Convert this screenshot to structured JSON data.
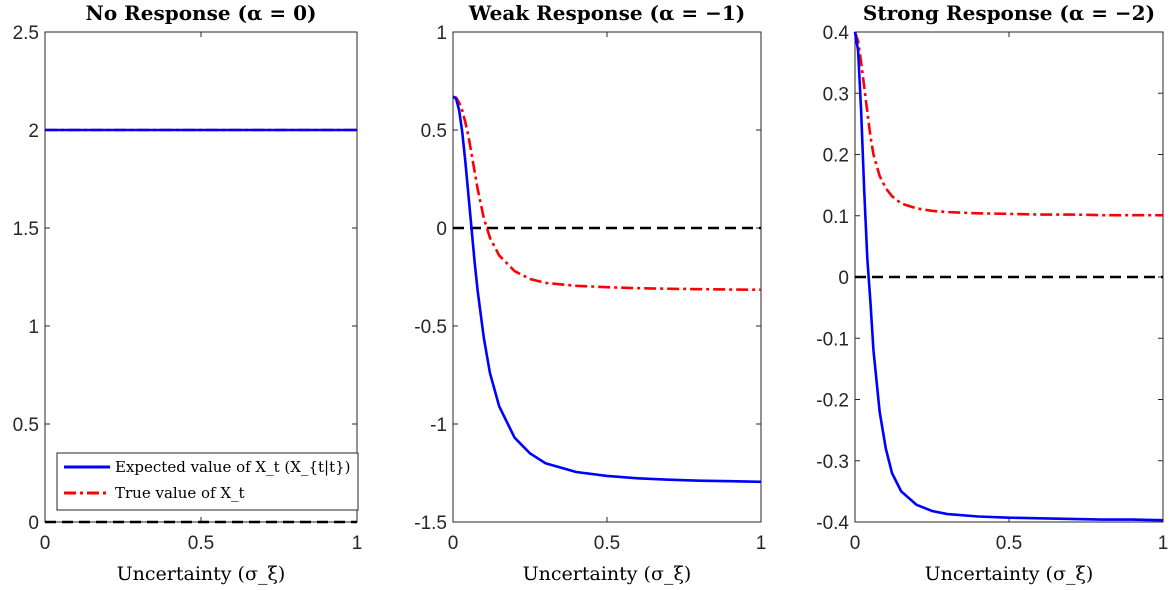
{
  "chart_data": [
    {
      "type": "line",
      "title": "No Response (α = 0)",
      "xlabel": "Uncertainty (σ_ξ)",
      "ylabel": "",
      "xlim": [
        0,
        1
      ],
      "ylim": [
        0,
        2.5
      ],
      "xticks": [
        "0",
        "0.5",
        "1"
      ],
      "xtick_values": [
        0,
        0.5,
        1
      ],
      "yticks": [
        "0",
        "0.5",
        "1",
        "1.5",
        "2",
        "2.5"
      ],
      "ytick_values": [
        0,
        0.5,
        1,
        1.5,
        2,
        2.5
      ],
      "legend": "bottom-left",
      "grid": false,
      "x": [
        0,
        0.02,
        0.04,
        0.06,
        0.08,
        0.1,
        0.15,
        0.2,
        0.25,
        0.3,
        0.4,
        0.5,
        0.6,
        0.7,
        0.8,
        0.9,
        1.0
      ],
      "series": [
        {
          "name": "Expected value of X_t (X_{t|t})",
          "color": "#0000ff",
          "style": "solid",
          "values": [
            2,
            2,
            2,
            2,
            2,
            2,
            2,
            2,
            2,
            2,
            2,
            2,
            2,
            2,
            2,
            2,
            2
          ]
        },
        {
          "name": "True value of X_t",
          "color": "#ff0000",
          "style": "dashdot",
          "values": [
            2,
            2,
            2,
            2,
            2,
            2,
            2,
            2,
            2,
            2,
            2,
            2,
            2,
            2,
            2,
            2,
            2
          ]
        },
        {
          "color": "#000000",
          "style": "dashed",
          "values": [
            0,
            0,
            0,
            0,
            0,
            0,
            0,
            0,
            0,
            0,
            0,
            0,
            0,
            0,
            0,
            0,
            0
          ]
        }
      ]
    },
    {
      "type": "line",
      "title": "Weak Response (α = −1)",
      "xlabel": "Uncertainty (σ_ξ)",
      "ylabel": "",
      "xlim": [
        0,
        1
      ],
      "ylim": [
        -1.5,
        1
      ],
      "xticks": [
        "0",
        "0.5",
        "1"
      ],
      "xtick_values": [
        0,
        0.5,
        1
      ],
      "yticks": [
        "-1.5",
        "-1",
        "-0.5",
        "0",
        "0.5",
        "1"
      ],
      "ytick_values": [
        -1.5,
        -1,
        -0.5,
        0,
        0.5,
        1
      ],
      "grid": false,
      "x": [
        0,
        0.01,
        0.02,
        0.03,
        0.04,
        0.05,
        0.06,
        0.07,
        0.08,
        0.1,
        0.12,
        0.15,
        0.2,
        0.25,
        0.3,
        0.4,
        0.5,
        0.6,
        0.7,
        0.8,
        0.9,
        1.0
      ],
      "series": [
        {
          "name": "Expected value of X_t (X_{t|t})",
          "color": "#0000ff",
          "style": "solid",
          "values": [
            0.67,
            0.66,
            0.6,
            0.49,
            0.34,
            0.17,
            0.0,
            -0.17,
            -0.32,
            -0.56,
            -0.74,
            -0.91,
            -1.07,
            -1.15,
            -1.2,
            -1.245,
            -1.265,
            -1.277,
            -1.284,
            -1.289,
            -1.292,
            -1.295
          ]
        },
        {
          "name": "True value of X_t",
          "color": "#ff0000",
          "style": "dashdot",
          "values": [
            0.67,
            0.665,
            0.64,
            0.6,
            0.54,
            0.47,
            0.38,
            0.29,
            0.2,
            0.05,
            -0.05,
            -0.14,
            -0.22,
            -0.26,
            -0.28,
            -0.295,
            -0.302,
            -0.307,
            -0.31,
            -0.312,
            -0.314,
            -0.315
          ]
        },
        {
          "color": "#000000",
          "style": "dashed",
          "values": [
            0,
            0,
            0,
            0,
            0,
            0,
            0,
            0,
            0,
            0,
            0,
            0,
            0,
            0,
            0,
            0,
            0,
            0,
            0,
            0,
            0,
            0
          ]
        }
      ]
    },
    {
      "type": "line",
      "title": "Strong Response (α = −2)",
      "xlabel": "Uncertainty (σ_ξ)",
      "ylabel": "",
      "xlim": [
        0,
        1
      ],
      "ylim": [
        -0.4,
        0.4
      ],
      "xticks": [
        "0",
        "0.5",
        "1"
      ],
      "xtick_values": [
        0,
        0.5,
        1
      ],
      "yticks": [
        "-0.4",
        "-0.3",
        "-0.2",
        "-0.1",
        "0",
        "0.1",
        "0.2",
        "0.3",
        "0.4"
      ],
      "ytick_values": [
        -0.4,
        -0.3,
        -0.2,
        -0.1,
        0,
        0.1,
        0.2,
        0.3,
        0.4
      ],
      "grid": false,
      "x": [
        0,
        0.01,
        0.02,
        0.03,
        0.04,
        0.05,
        0.06,
        0.08,
        0.1,
        0.12,
        0.15,
        0.2,
        0.25,
        0.3,
        0.4,
        0.5,
        0.6,
        0.7,
        0.8,
        0.9,
        1.0
      ],
      "series": [
        {
          "name": "Expected value of X_t (X_{t|t})",
          "color": "#0000ff",
          "style": "solid",
          "values": [
            0.4,
            0.37,
            0.27,
            0.14,
            0.03,
            -0.04,
            -0.12,
            -0.22,
            -0.28,
            -0.32,
            -0.35,
            -0.372,
            -0.382,
            -0.387,
            -0.391,
            -0.393,
            -0.394,
            -0.395,
            -0.396,
            -0.396,
            -0.397
          ]
        },
        {
          "name": "True value of X_t",
          "color": "#ff0000",
          "style": "dashdot",
          "values": [
            0.4,
            0.385,
            0.35,
            0.31,
            0.27,
            0.23,
            0.2,
            0.165,
            0.145,
            0.132,
            0.12,
            0.112,
            0.108,
            0.106,
            0.104,
            0.103,
            0.102,
            0.102,
            0.101,
            0.101,
            0.101
          ]
        },
        {
          "color": "#000000",
          "style": "dashed",
          "values": [
            0,
            0,
            0,
            0,
            0,
            0,
            0,
            0,
            0,
            0,
            0,
            0,
            0,
            0,
            0,
            0,
            0,
            0,
            0,
            0,
            0
          ]
        }
      ]
    }
  ]
}
